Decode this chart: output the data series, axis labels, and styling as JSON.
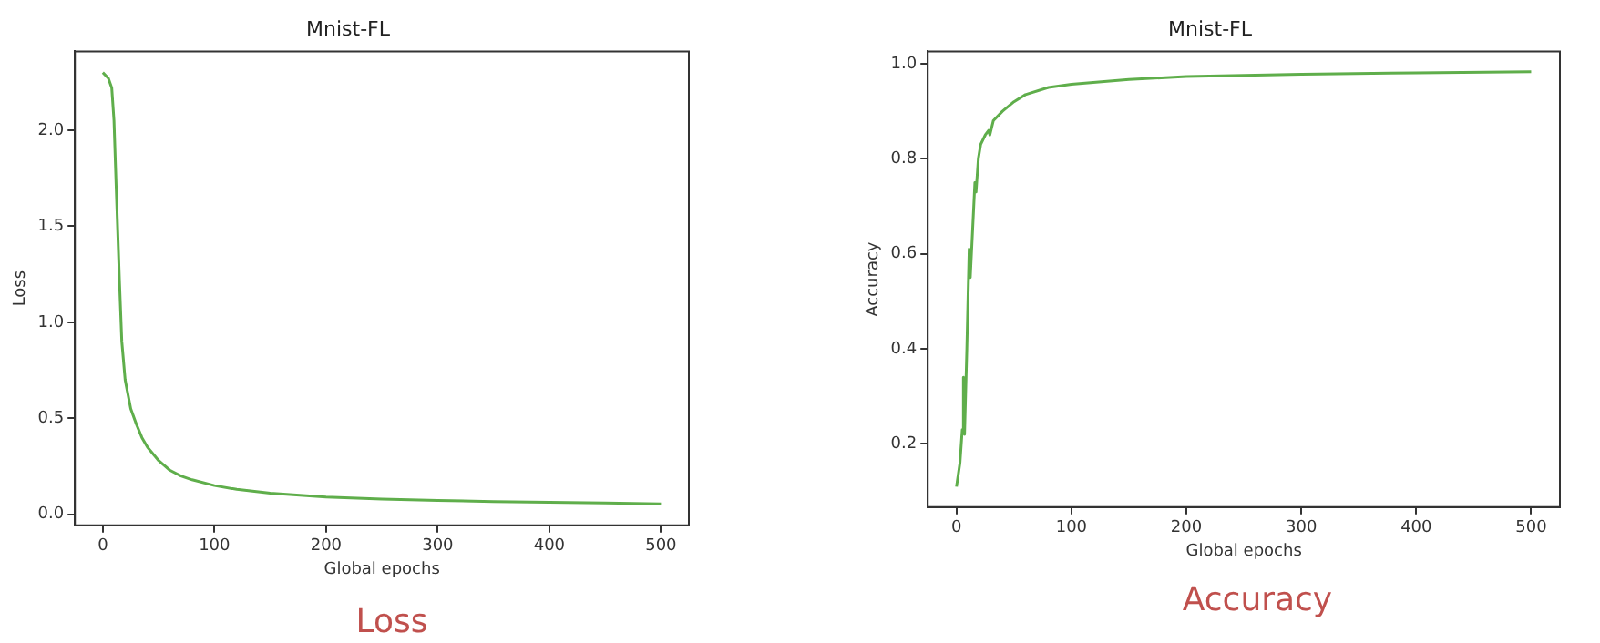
{
  "chart_data": [
    {
      "type": "line",
      "title": "Mnist-FL",
      "xlabel": "Global epochs",
      "ylabel": "Loss",
      "annotations": [
        "Loss"
      ],
      "xlim": [
        -25,
        525
      ],
      "xticks": [
        0,
        100,
        200,
        300,
        400,
        500
      ],
      "ylim": [
        -0.057,
        2.41
      ],
      "yticks": [
        {
          "value": 0,
          "label": "0.0"
        },
        0.5,
        {
          "value": 1,
          "label": "1.0"
        },
        1.5,
        {
          "value": 2,
          "label": "2.0"
        }
      ],
      "grid": false,
      "legend": false,
      "marker": "none",
      "line_style": "solid",
      "series": [
        {
          "color": "#5fae4b",
          "x": [
            0,
            5,
            8,
            10,
            12,
            15,
            17,
            20,
            25,
            30,
            35,
            40,
            50,
            60,
            70,
            80,
            100,
            120,
            150,
            200,
            250,
            300,
            350,
            400,
            450,
            500
          ],
          "values": [
            2.3,
            2.27,
            2.22,
            2.05,
            1.7,
            1.2,
            0.9,
            0.7,
            0.55,
            0.47,
            0.4,
            0.35,
            0.28,
            0.23,
            0.2,
            0.18,
            0.15,
            0.13,
            0.11,
            0.09,
            0.08,
            0.072,
            0.067,
            0.063,
            0.059,
            0.055
          ]
        }
      ]
    },
    {
      "type": "line",
      "title": "Mnist-FL",
      "xlabel": "Global epochs",
      "ylabel": "Accuracy",
      "annotations": [
        "Accuracy"
      ],
      "xlim": [
        -25,
        525
      ],
      "xticks": [
        0,
        100,
        200,
        300,
        400,
        500
      ],
      "ylim": [
        0.067,
        1.026
      ],
      "yticks": [
        0.2,
        0.4,
        0.6,
        0.8,
        {
          "value": 1,
          "label": "1.0"
        }
      ],
      "grid": false,
      "legend": false,
      "marker": "none",
      "line_style": "solid",
      "series": [
        {
          "color": "#5fae4b",
          "x": [
            0,
            3,
            5,
            6,
            7,
            9,
            11,
            12,
            14,
            16,
            17,
            19,
            21,
            25,
            28,
            29,
            32,
            40,
            50,
            60,
            80,
            100,
            150,
            200,
            300,
            400,
            500
          ],
          "values": [
            0.11,
            0.16,
            0.23,
            0.34,
            0.22,
            0.4,
            0.61,
            0.55,
            0.65,
            0.75,
            0.73,
            0.8,
            0.83,
            0.85,
            0.86,
            0.85,
            0.88,
            0.9,
            0.92,
            0.935,
            0.95,
            0.957,
            0.967,
            0.973,
            0.978,
            0.981,
            0.983
          ]
        }
      ]
    }
  ]
}
